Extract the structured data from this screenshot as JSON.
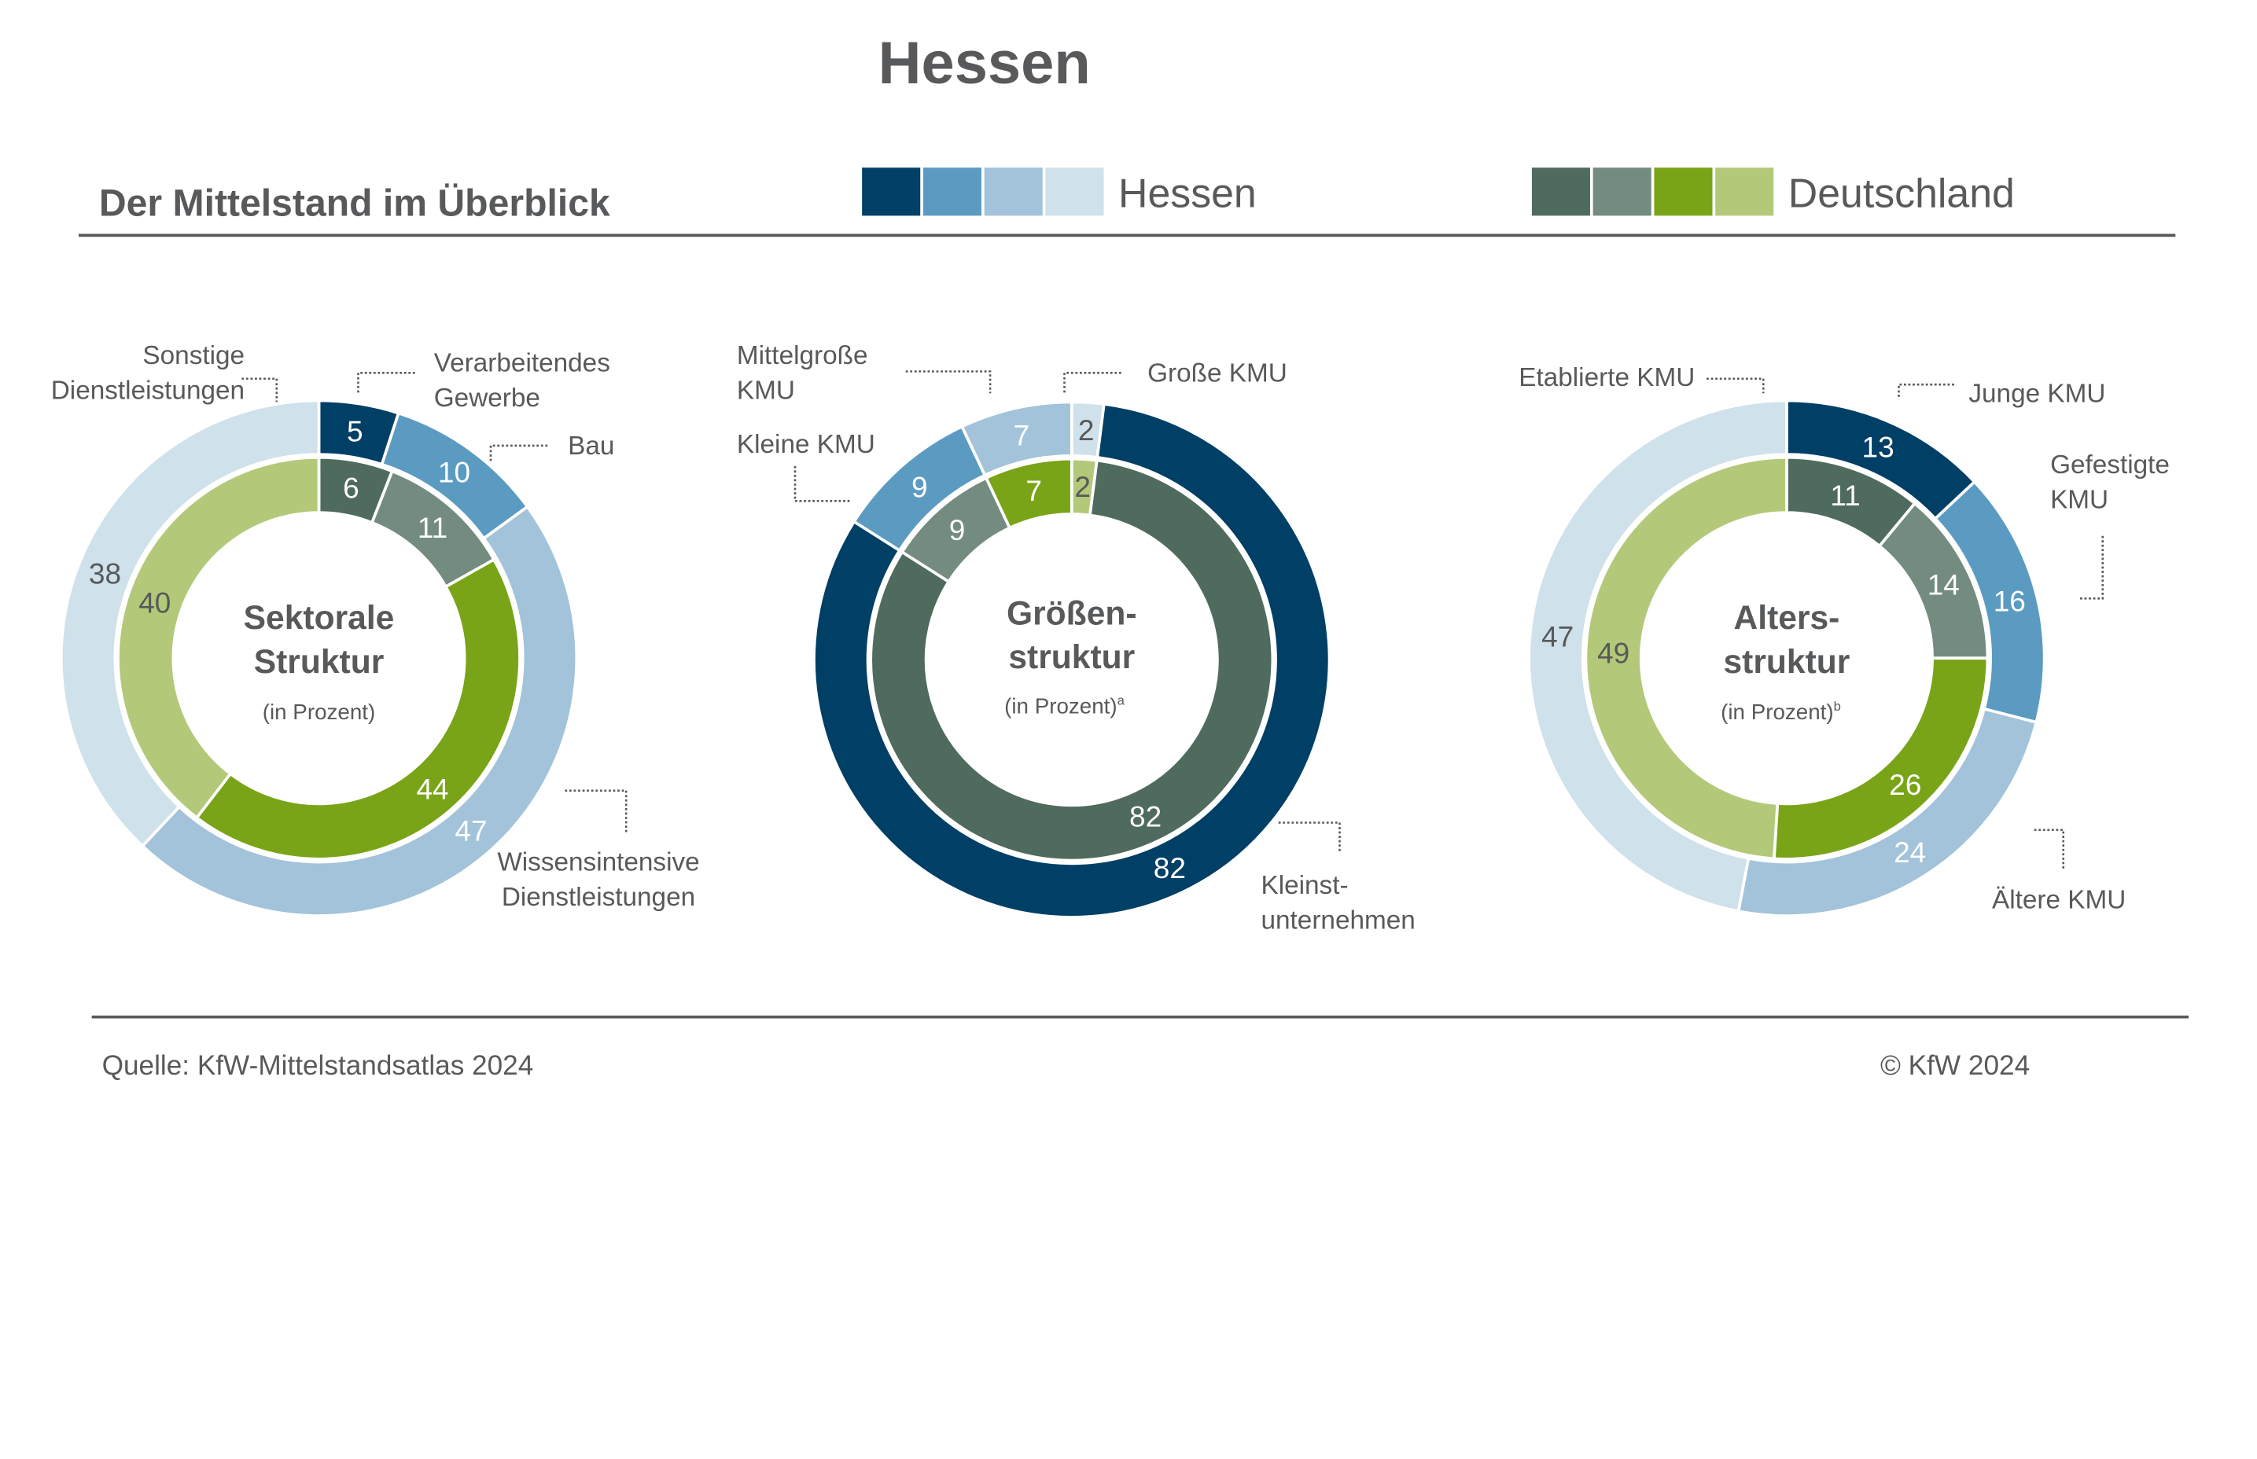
{
  "title": "Hessen",
  "subtitle": "Der Mittelstand im Überblick",
  "legend": {
    "hessen_label": "Hessen",
    "hessen_colors": [
      "#003f66",
      "#5b9bc1",
      "#a2c3d9",
      "#cfe1ea"
    ],
    "deutschland_label": "Deutschland",
    "deutschland_colors": [
      "#4f6b5d",
      "#748c80",
      "#7aa418",
      "#b3c979"
    ]
  },
  "footer": {
    "source": "Quelle: KfW-Mittelstandsatlas 2024",
    "copyright": "© KfW 2024"
  },
  "chart_data": [
    {
      "type": "donut",
      "center_title": [
        "Sektorale",
        "Struktur"
      ],
      "center_unit": "(in Prozent)",
      "center_unit_sup": "",
      "categories": [
        "Verarbeitendes Gewerbe",
        "Bau",
        "Wissensintensive Dienstleistungen",
        "Sonstige Dienstleistungen"
      ],
      "series": [
        {
          "name": "Hessen",
          "ring": "outer",
          "values": [
            5,
            10,
            47,
            38
          ]
        },
        {
          "name": "Deutschland",
          "ring": "inner",
          "values": [
            6,
            11,
            44,
            40
          ]
        }
      ],
      "callouts": [
        {
          "lines": [
            "Sonstige",
            "Dienstleistungen"
          ]
        },
        {
          "lines": [
            "Verarbeitendes",
            "Gewerbe"
          ]
        },
        {
          "lines": [
            "Bau"
          ]
        },
        {
          "lines": [
            "Wissensintensive",
            "Dienstleistungen"
          ]
        }
      ]
    },
    {
      "type": "donut",
      "center_title": [
        "Größen-",
        "struktur"
      ],
      "center_unit": "(in Prozent)",
      "center_unit_sup": "a",
      "categories": [
        "Große KMU",
        "Kleinstunternehmen",
        "Kleine KMU",
        "Mittelgroße KMU"
      ],
      "series": [
        {
          "name": "Hessen",
          "ring": "outer",
          "values": [
            2,
            82,
            9,
            7
          ]
        },
        {
          "name": "Deutschland",
          "ring": "inner",
          "values": [
            2,
            82,
            9,
            7
          ]
        }
      ],
      "callouts": [
        {
          "lines": [
            "Mittelgroße",
            "KMU"
          ]
        },
        {
          "lines": [
            "Große KMU"
          ]
        },
        {
          "lines": [
            "Kleine KMU"
          ]
        },
        {
          "lines": [
            "Kleinst-",
            "unternehmen"
          ]
        }
      ]
    },
    {
      "type": "donut",
      "center_title": [
        "Alters-",
        "struktur"
      ],
      "center_unit": "(in Prozent)",
      "center_unit_sup": "b",
      "categories": [
        "Junge KMU",
        "Gefestigte KMU",
        "Ältere KMU",
        "Etablierte KMU"
      ],
      "series": [
        {
          "name": "Hessen",
          "ring": "outer",
          "values": [
            13,
            16,
            24,
            47
          ]
        },
        {
          "name": "Deutschland",
          "ring": "inner",
          "values": [
            11,
            14,
            26,
            49
          ]
        }
      ],
      "callouts": [
        {
          "lines": [
            "Etablierte KMU"
          ]
        },
        {
          "lines": [
            "Junge KMU"
          ]
        },
        {
          "lines": [
            "Gefestigte",
            "KMU"
          ]
        },
        {
          "lines": [
            "Ältere KMU"
          ]
        }
      ]
    }
  ]
}
